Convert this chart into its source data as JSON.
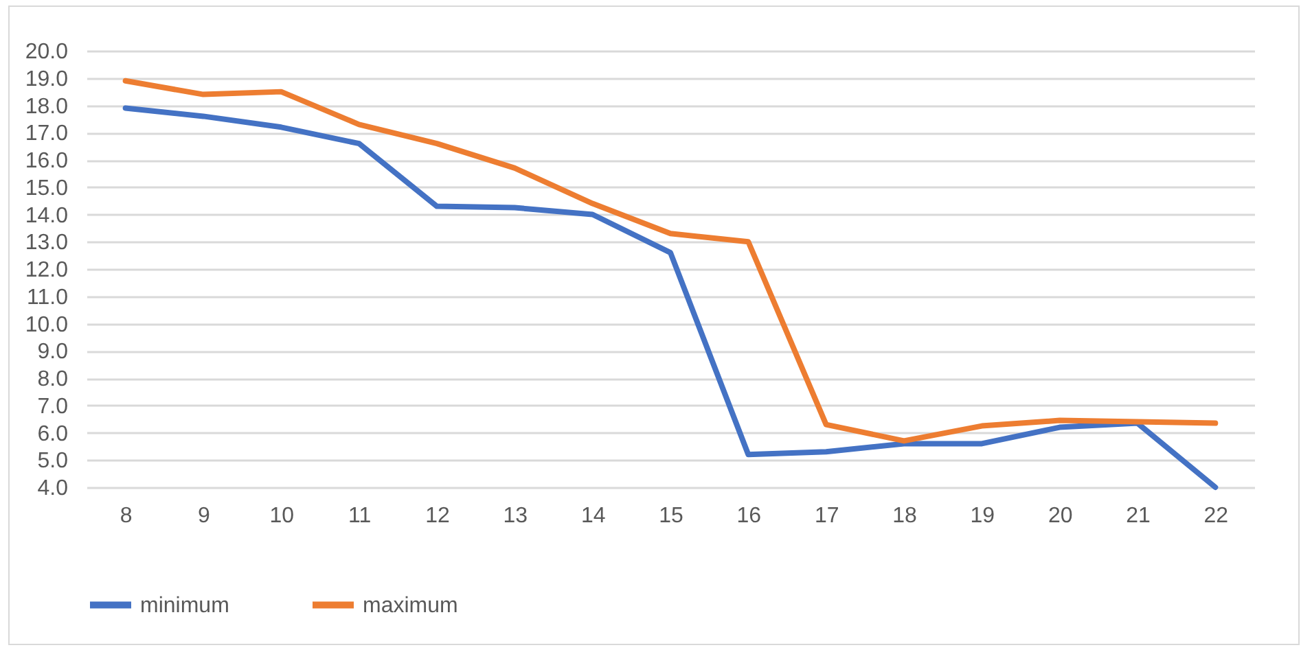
{
  "chart_data": {
    "type": "line",
    "categories": [
      "8",
      "9",
      "10",
      "11",
      "12",
      "13",
      "14",
      "15",
      "16",
      "17",
      "18",
      "19",
      "20",
      "21",
      "22"
    ],
    "series": [
      {
        "name": "minimum",
        "color": "#4472c4",
        "values": [
          17.9,
          17.6,
          17.2,
          16.6,
          14.3,
          14.25,
          14.0,
          12.6,
          5.2,
          5.3,
          5.6,
          5.6,
          6.2,
          6.35,
          4.0
        ]
      },
      {
        "name": "maximum",
        "color": "#ed7d31",
        "values": [
          18.9,
          18.4,
          18.5,
          17.3,
          16.6,
          15.7,
          14.4,
          13.3,
          13.0,
          6.3,
          5.7,
          6.25,
          6.45,
          6.4,
          6.35
        ]
      }
    ],
    "ylim": [
      4,
      20
    ],
    "yticks": [
      {
        "value": 4,
        "label": "4.0"
      },
      {
        "value": 5,
        "label": "5.0"
      },
      {
        "value": 6,
        "label": "6.0"
      },
      {
        "value": 7,
        "label": "7.0"
      },
      {
        "value": 8,
        "label": "8.0"
      },
      {
        "value": 9,
        "label": "9.0"
      },
      {
        "value": 10,
        "label": "10.0"
      },
      {
        "value": 11,
        "label": "11.0"
      },
      {
        "value": 12,
        "label": "12.0"
      },
      {
        "value": 13,
        "label": "13.0"
      },
      {
        "value": 14,
        "label": "14.0"
      },
      {
        "value": 15,
        "label": "15.0"
      },
      {
        "value": 16,
        "label": "16.0"
      },
      {
        "value": 17,
        "label": "17.0"
      },
      {
        "value": 18,
        "label": "18.0"
      },
      {
        "value": 19,
        "label": "19.0"
      },
      {
        "value": 20,
        "label": "20.0"
      }
    ],
    "grid": "y",
    "legend": "bottom",
    "marker": "none",
    "line_style": "solid"
  }
}
